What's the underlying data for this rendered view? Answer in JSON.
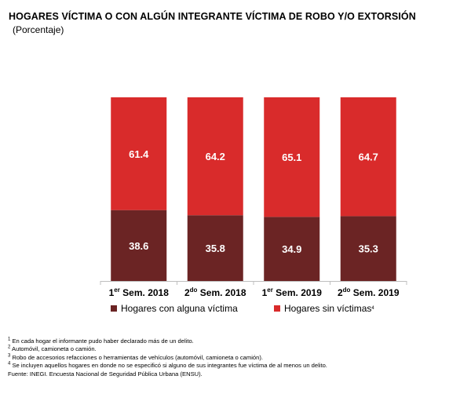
{
  "title": "HOGARES VÍCTIMA O CON ALGÚN INTEGRANTE VÍCTIMA DE ROBO Y/O EXTORSIÓN",
  "subtitle": "(Porcentaje)",
  "chart_data": {
    "type": "bar",
    "stacked": true,
    "categories": [
      {
        "pre": "1",
        "sup": "er",
        "post": " Sem. 2018"
      },
      {
        "pre": "2",
        "sup": "do",
        "post": " Sem. 2018"
      },
      {
        "pre": "1",
        "sup": "er",
        "post": " Sem. 2019"
      },
      {
        "pre": "2",
        "sup": "do",
        "post": " Sem. 2019"
      }
    ],
    "series": [
      {
        "name": "Hogares con alguna víctima",
        "values": [
          38.6,
          35.8,
          34.9,
          35.3
        ],
        "color": "#6b2424"
      },
      {
        "name": "Hogares sin víctimas",
        "sup": "4",
        "values": [
          61.4,
          64.2,
          65.1,
          64.7
        ],
        "color": "#d92b2b"
      }
    ],
    "value_labels": {
      "bottom": [
        "38.6",
        "35.8",
        "34.9",
        "35.3"
      ],
      "top": [
        "61.4",
        "64.2",
        "65.1",
        "64.7"
      ]
    },
    "ylim": [
      0,
      100
    ],
    "grid": false,
    "legend": "bottom"
  },
  "footnotes": [
    {
      "sup": "1",
      "text": " En cada hogar el informante pudo haber declarado más de un delito."
    },
    {
      "sup": "2",
      "text": " Automóvil, camioneta o camión."
    },
    {
      "sup": "3",
      "text": " Robo de accesorios refacciones o herramientas de vehículos (automóvil, camioneta o camión)."
    },
    {
      "sup": "4",
      "text": " Se incluyen aquellos hogares en donde no se especificó si alguno de sus integrantes fue víctima de al menos un delito."
    },
    {
      "sup": "",
      "text": "Fuente: INEGI. Encuesta Nacional de Seguridad Pública Urbana (ENSU)."
    }
  ]
}
